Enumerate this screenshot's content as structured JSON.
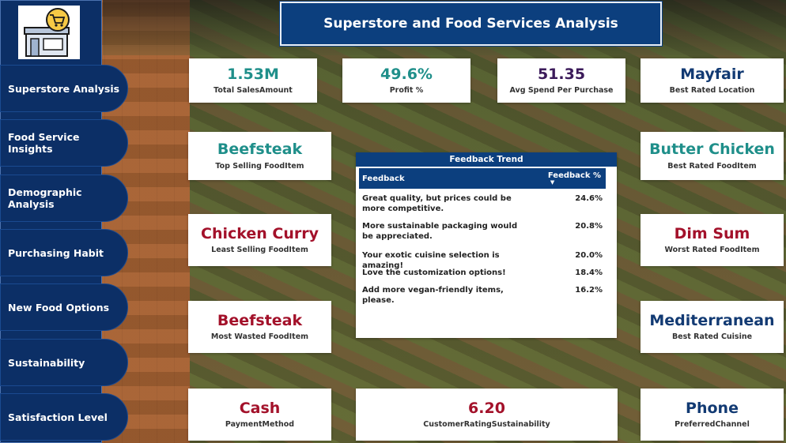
{
  "header": {
    "title": "Superstore and Food Services Analysis"
  },
  "sidebar": {
    "logo_icon": "store-cart-icon",
    "items": [
      {
        "label": "Superstore Analysis"
      },
      {
        "label": "Food Service Insights"
      },
      {
        "label": "Demographic Analysis"
      },
      {
        "label": "Purchasing Habit"
      },
      {
        "label": "New Food Options"
      },
      {
        "label": "Sustainability"
      },
      {
        "label": "Satisfaction Level"
      }
    ]
  },
  "kpis": {
    "sales": {
      "value": "1.53M",
      "label": "Total SalesAmount"
    },
    "profit": {
      "value": "49.6%",
      "label": "Profit %"
    },
    "avg_spend": {
      "value": "51.35",
      "label": "Avg Spend Per Purchase"
    },
    "best_location": {
      "value": "Mayfair",
      "label": "Best Rated Location"
    },
    "top_selling": {
      "value": "Beefsteak",
      "label": "Top Selling FoodItem"
    },
    "best_rated_food": {
      "value": "Butter Chicken",
      "label": "Best Rated FoodItem"
    },
    "least_selling": {
      "value": "Chicken Curry",
      "label": "Least Selling FoodItem"
    },
    "worst_rated": {
      "value": "Dim Sum",
      "label": "Worst Rated FoodItem"
    },
    "most_wasted": {
      "value": "Beefsteak",
      "label": "Most Wasted FoodItem"
    },
    "best_cuisine": {
      "value": "Mediterranean",
      "label": "Best Rated Cuisine"
    },
    "payment": {
      "value": "Cash",
      "label": "PaymentMethod"
    },
    "rating_sustain": {
      "value": "6.20",
      "label": "CustomerRatingSustainability"
    },
    "channel": {
      "value": "Phone",
      "label": "PreferredChannel"
    }
  },
  "feedback": {
    "title": "Feedback Trend",
    "col_feedback": "Feedback",
    "col_pct": "Feedback %",
    "rows": [
      {
        "text": "Great quality, but prices could be more competitive.",
        "pct": "24.6%"
      },
      {
        "text": "More sustainable packaging would be appreciated.",
        "pct": "20.8%"
      },
      {
        "text": "Your exotic cuisine selection is amazing!",
        "pct": "20.0%"
      },
      {
        "text": "Love the customization options!",
        "pct": "18.4%"
      },
      {
        "text": "Add more vegan-friendly items, please.",
        "pct": "16.2%"
      }
    ]
  },
  "colors": {
    "sidebar": "#0c2f66",
    "title_bar": "#0c3f7e",
    "teal": "#1f8f8a",
    "navy": "#123a73",
    "purple": "#3b1a5a",
    "crimson": "#a3112a"
  }
}
